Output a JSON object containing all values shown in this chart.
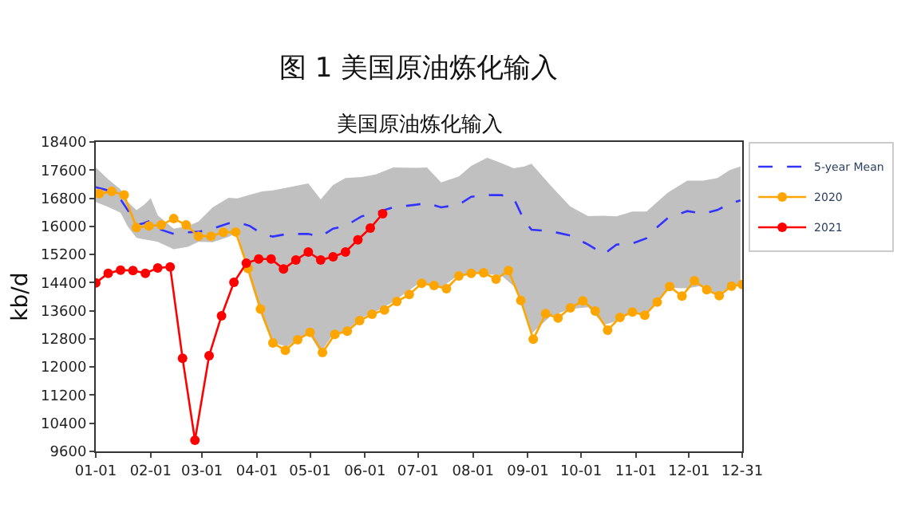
{
  "chart_data": {
    "type": "line",
    "title": "图 1 美国原油炼化输入",
    "subtitle": "美国原油炼化输入",
    "ylabel": "kb/d",
    "xlim": [
      "--01-01",
      "--12-31"
    ],
    "xticks": [
      {
        "value": "--01-01",
        "label": "01-01"
      },
      {
        "value": "--02-01",
        "label": "02-01"
      },
      {
        "value": "--03-01",
        "label": "03-01"
      },
      {
        "value": "--04-01",
        "label": "04-01"
      },
      {
        "value": "--05-01",
        "label": "05-01"
      },
      {
        "value": "--06-01",
        "label": "06-01"
      },
      {
        "value": "--07-01",
        "label": "07-01"
      },
      {
        "value": "--08-01",
        "label": "08-01"
      },
      {
        "value": "--09-01",
        "label": "09-01"
      },
      {
        "value": "--10-01",
        "label": "10-01"
      },
      {
        "value": "--11-01",
        "label": "11-01"
      },
      {
        "value": "--12-01",
        "label": "12-01"
      },
      {
        "value": "--12-31",
        "label": "12-31"
      }
    ],
    "ylim": [
      9600,
      18400
    ],
    "yticks": [
      9600,
      10400,
      11200,
      12000,
      12800,
      13600,
      14400,
      15200,
      16000,
      16800,
      17600,
      18400
    ],
    "legend": "top right",
    "series": [
      {
        "name": "5-year Mean",
        "color": "#3333ff",
        "line_style": "dashed",
        "marker": "none",
        "x": [
          "--01-01",
          "--01-08",
          "--01-15",
          "--01-19",
          "--01-24",
          "--01-28",
          "--02-01",
          "--02-05",
          "--02-14",
          "--02-22",
          "--02-28",
          "--03-07",
          "--03-16",
          "--03-21",
          "--03-28",
          "--04-04",
          "--04-10",
          "--04-18",
          "--04-30",
          "--05-07",
          "--05-14",
          "--05-21",
          "--05-30",
          "--06-07",
          "--06-17",
          "--06-30",
          "--07-06",
          "--07-14",
          "--07-24",
          "--07-31",
          "--08-09",
          "--08-17",
          "--08-24",
          "--08-30",
          "--09-03",
          "--09-14",
          "--09-25",
          "--10-05",
          "--10-14",
          "--10-21",
          "--10-30",
          "--11-07",
          "--11-12",
          "--11-19",
          "--11-30",
          "--12-09",
          "--12-17",
          "--12-24",
          "--12-30"
        ],
        "values": [
          17115,
          17024,
          16767,
          16465,
          16040,
          16086,
          16162,
          15935,
          15784,
          15830,
          15845,
          15935,
          16086,
          16117,
          16010,
          15784,
          15709,
          15784,
          15784,
          15709,
          15935,
          16010,
          16283,
          16389,
          16540,
          16616,
          16661,
          16540,
          16616,
          16843,
          16888,
          16888,
          16797,
          16162,
          15905,
          15860,
          15739,
          15482,
          15210,
          15482,
          15512,
          15663,
          15935,
          16238,
          16434,
          16359,
          16465,
          16646,
          16737
        ],
        "upper": [
          17674,
          17340,
          17050,
          16700,
          16460,
          16600,
          16800,
          16313,
          15935,
          16010,
          16140,
          16540,
          16813,
          16797,
          16900,
          16994,
          17024,
          17100,
          17220,
          16767,
          17175,
          17371,
          17400,
          17477,
          17674,
          17660,
          17674,
          17250,
          17420,
          17720,
          17950,
          17800,
          17650,
          17700,
          17780,
          17150,
          16560,
          16290,
          16300,
          16283,
          16419,
          16419,
          16650,
          16960,
          17300,
          17300,
          17371,
          17598,
          17700
        ],
        "lower": [
          16692,
          16550,
          16389,
          16000,
          15670,
          15633,
          15600,
          15557,
          15350,
          15420,
          15560,
          15550,
          15700,
          15830,
          14480,
          13380,
          12685,
          12580,
          12987,
          12412,
          12927,
          13018,
          13400,
          13570,
          13850,
          14330,
          14350,
          14260,
          14620,
          14660,
          14640,
          14600,
          14300,
          13600,
          12950,
          13450,
          13650,
          13700,
          13200,
          13300,
          13550,
          13500,
          13820,
          14250,
          14240,
          14320,
          14040,
          14290,
          14340
        ]
      },
      {
        "name": "2020",
        "color": "#ffa500",
        "line_style": "solid",
        "marker": "circle",
        "x": [
          "--01-03",
          "--01-10",
          "--01-17",
          "--01-24",
          "--01-31",
          "--02-07",
          "--02-14",
          "--02-21",
          "--02-28",
          "--03-06",
          "--03-13",
          "--03-20",
          "--03-27",
          "--04-03",
          "--04-10",
          "--04-17",
          "--04-24",
          "--05-01",
          "--05-08",
          "--05-15",
          "--05-22",
          "--05-29",
          "--06-05",
          "--06-12",
          "--06-19",
          "--06-26",
          "--07-03",
          "--07-10",
          "--07-17",
          "--07-24",
          "--07-31",
          "--08-07",
          "--08-14",
          "--08-21",
          "--08-28",
          "--09-04",
          "--09-11",
          "--09-18",
          "--09-25",
          "--10-02",
          "--10-09",
          "--10-16",
          "--10-23",
          "--10-30",
          "--11-06",
          "--11-13",
          "--11-20",
          "--11-27",
          "--12-04",
          "--12-11",
          "--12-18",
          "--12-25",
          "--12-31"
        ],
        "values": [
          16933,
          16994,
          16890,
          15966,
          16010,
          16040,
          16220,
          16040,
          15720,
          15720,
          15830,
          15840,
          14800,
          13650,
          12685,
          12473,
          12775,
          12987,
          12412,
          12927,
          13018,
          13320,
          13501,
          13622,
          13864,
          14060,
          14378,
          14318,
          14227,
          14590,
          14665,
          14680,
          14499,
          14741,
          13894,
          12790,
          13516,
          13395,
          13683,
          13879,
          13592,
          13047,
          13410,
          13562,
          13471,
          13849,
          14287,
          14015,
          14453,
          14197,
          14030,
          14303,
          14348
        ]
      },
      {
        "name": "2021",
        "color": "#ff0000",
        "line_style": "solid",
        "marker": "circle",
        "x": [
          "--01-01",
          "--01-08",
          "--01-15",
          "--01-22",
          "--01-29",
          "--02-05",
          "--02-12",
          "--02-19",
          "--02-26",
          "--03-05",
          "--03-12",
          "--03-19",
          "--03-26",
          "--04-02",
          "--04-09",
          "--04-16",
          "--04-23",
          "--04-30",
          "--05-07",
          "--05-14",
          "--05-21",
          "--05-28",
          "--06-04",
          "--06-11"
        ],
        "values": [
          14393,
          14666,
          14756,
          14741,
          14666,
          14817,
          14847,
          12246,
          9917,
          12322,
          13456,
          14408,
          14953,
          15073,
          15073,
          14786,
          15043,
          15270,
          15043,
          15134,
          15270,
          15618,
          15950,
          16359
        ]
      }
    ]
  }
}
